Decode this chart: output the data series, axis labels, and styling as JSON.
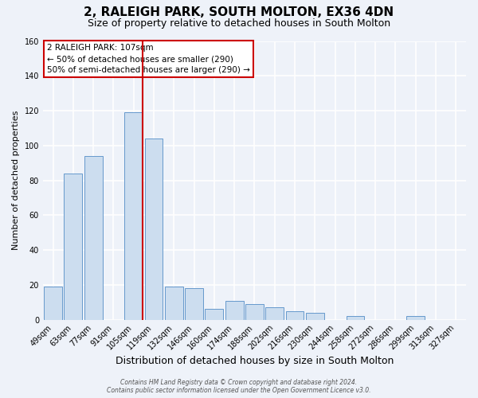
{
  "title": "2, RALEIGH PARK, SOUTH MOLTON, EX36 4DN",
  "subtitle": "Size of property relative to detached houses in South Molton",
  "xlabel": "Distribution of detached houses by size in South Molton",
  "ylabel": "Number of detached properties",
  "bar_labels": [
    "49sqm",
    "63sqm",
    "77sqm",
    "91sqm",
    "105sqm",
    "119sqm",
    "132sqm",
    "146sqm",
    "160sqm",
    "174sqm",
    "188sqm",
    "202sqm",
    "216sqm",
    "230sqm",
    "244sqm",
    "258sqm",
    "272sqm",
    "286sqm",
    "299sqm",
    "313sqm",
    "327sqm"
  ],
  "bar_values": [
    19,
    84,
    94,
    0,
    119,
    104,
    19,
    18,
    6,
    11,
    9,
    7,
    5,
    4,
    0,
    2,
    0,
    0,
    2,
    0,
    0
  ],
  "bar_color": "#ccddef",
  "bar_edge_color": "#6699cc",
  "vline_color": "#cc0000",
  "vline_pos": 4.43,
  "ylim": [
    0,
    160
  ],
  "yticks": [
    0,
    20,
    40,
    60,
    80,
    100,
    120,
    140,
    160
  ],
  "annotation_title": "2 RALEIGH PARK: 107sqm",
  "annotation_line1": "← 50% of detached houses are smaller (290)",
  "annotation_line2": "50% of semi-detached houses are larger (290) →",
  "footer1": "Contains HM Land Registry data © Crown copyright and database right 2024.",
  "footer2": "Contains public sector information licensed under the Open Government Licence v3.0.",
  "background_color": "#eef2f9",
  "grid_color": "#ffffff",
  "title_fontsize": 11,
  "subtitle_fontsize": 9,
  "xlabel_fontsize": 9,
  "ylabel_fontsize": 8,
  "tick_fontsize": 7,
  "annotation_fontsize": 7.5,
  "annotation_box_color": "#ffffff",
  "annotation_border_color": "#cc0000"
}
